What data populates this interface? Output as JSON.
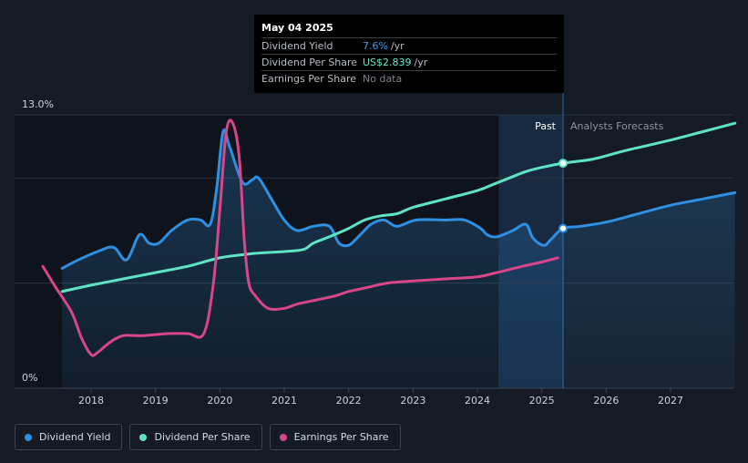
{
  "tooltip": {
    "date": "May 04 2025",
    "rows": [
      {
        "label": "Dividend Yield",
        "value": "7.6%",
        "unit": "/yr",
        "color": "#3b9be8"
      },
      {
        "label": "Dividend Per Share",
        "value": "US$2.839",
        "unit": "/yr",
        "color": "#67e8c8"
      },
      {
        "label": "Earnings Per Share",
        "value": "No data",
        "unit": "",
        "color": "#7d848d"
      }
    ]
  },
  "legend": [
    {
      "label": "Dividend Yield",
      "color": "#2f8fe0"
    },
    {
      "label": "Dividend Per Share",
      "color": "#5fe3c5"
    },
    {
      "label": "Earnings Per Share",
      "color": "#d8468a"
    }
  ],
  "chart_data": {
    "type": "line",
    "x_ticks": [
      "2018",
      "2019",
      "2020",
      "2021",
      "2022",
      "2023",
      "2024",
      "2025",
      "2026",
      "2027"
    ],
    "y_ticks": [
      "13.0%",
      "0%"
    ],
    "ylim": [
      0,
      13
    ],
    "xlim": [
      2017.0,
      2028.0
    ],
    "past_label": "Past",
    "forecast_label": "Analysts Forecasts",
    "forecast_start": 2025.33,
    "past_band_start": 2024.33,
    "grid": true,
    "series": [
      {
        "name": "Dividend Yield",
        "color": "#2f8fe0",
        "area": true,
        "x": [
          2017.55,
          2017.8,
          2018.1,
          2018.35,
          2018.55,
          2018.75,
          2018.9,
          2019.05,
          2019.25,
          2019.5,
          2019.7,
          2019.85,
          2019.95,
          2020.05,
          2020.15,
          2020.35,
          2020.5,
          2020.6,
          2020.8,
          2021.0,
          2021.2,
          2021.45,
          2021.7,
          2021.85,
          2022.0,
          2022.15,
          2022.35,
          2022.55,
          2022.75,
          2023.05,
          2023.5,
          2023.8,
          2024.05,
          2024.15,
          2024.3,
          2024.55,
          2024.75,
          2024.85,
          2024.95,
          2025.05,
          2025.15,
          2025.33,
          2025.6,
          2026.0,
          2026.5,
          2027.0,
          2027.5,
          2028.0
        ],
        "y": [
          5.7,
          6.1,
          6.5,
          6.7,
          6.1,
          7.3,
          6.9,
          6.9,
          7.5,
          8.0,
          8.0,
          7.8,
          9.5,
          12.2,
          11.5,
          9.8,
          9.9,
          10.0,
          9.0,
          8.0,
          7.5,
          7.7,
          7.7,
          6.9,
          6.8,
          7.2,
          7.8,
          8.0,
          7.7,
          8.0,
          8.0,
          8.0,
          7.6,
          7.3,
          7.2,
          7.5,
          7.8,
          7.2,
          6.9,
          6.8,
          7.1,
          7.6,
          7.7,
          7.9,
          8.3,
          8.7,
          9.0,
          9.3
        ]
      },
      {
        "name": "Dividend Per Share",
        "color": "#5fe3c5",
        "area": false,
        "x": [
          2017.55,
          2018.0,
          2018.5,
          2019.0,
          2019.5,
          2020.0,
          2020.5,
          2021.0,
          2021.3,
          2021.45,
          2021.7,
          2022.0,
          2022.25,
          2022.5,
          2022.75,
          2023.0,
          2023.5,
          2024.0,
          2024.25,
          2024.5,
          2024.75,
          2025.0,
          2025.33,
          2025.8,
          2026.3,
          2027.0,
          2027.5,
          2028.0
        ],
        "y": [
          4.6,
          4.9,
          5.2,
          5.5,
          5.8,
          6.2,
          6.4,
          6.5,
          6.6,
          6.9,
          7.2,
          7.6,
          8.0,
          8.2,
          8.3,
          8.6,
          9.0,
          9.4,
          9.7,
          10.0,
          10.3,
          10.5,
          10.7,
          10.9,
          11.3,
          11.8,
          12.2,
          12.6
        ]
      },
      {
        "name": "Earnings Per Share",
        "color": "#d8468a",
        "area": false,
        "x": [
          2017.25,
          2017.45,
          2017.7,
          2017.85,
          2018.0,
          2018.1,
          2018.3,
          2018.5,
          2018.8,
          2019.2,
          2019.5,
          2019.75,
          2019.9,
          2020.0,
          2020.1,
          2020.2,
          2020.3,
          2020.38,
          2020.45,
          2020.55,
          2020.75,
          2021.0,
          2021.2,
          2021.5,
          2021.8,
          2022.0,
          2022.3,
          2022.6,
          2023.0,
          2023.5,
          2024.0,
          2024.3,
          2024.7,
          2025.0,
          2025.25
        ],
        "y": [
          5.8,
          4.8,
          3.6,
          2.4,
          1.6,
          1.7,
          2.2,
          2.5,
          2.5,
          2.6,
          2.6,
          2.6,
          5.0,
          8.5,
          12.2,
          12.6,
          11.0,
          7.0,
          5.0,
          4.4,
          3.8,
          3.8,
          4.0,
          4.2,
          4.4,
          4.6,
          4.8,
          5.0,
          5.1,
          5.2,
          5.3,
          5.5,
          5.8,
          6.0,
          6.2
        ]
      }
    ],
    "markers": [
      {
        "series": "Dividend Per Share",
        "x": 2025.33,
        "y": 10.7
      },
      {
        "series": "Dividend Yield",
        "x": 2025.33,
        "y": 7.6
      }
    ]
  }
}
